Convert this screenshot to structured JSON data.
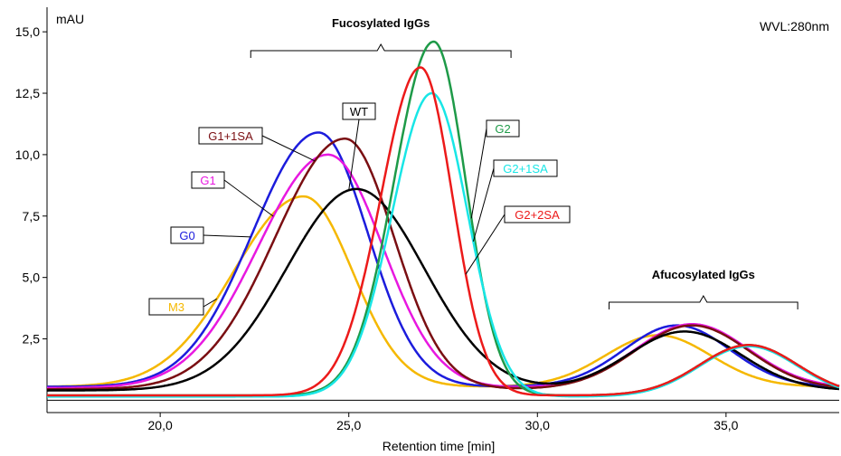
{
  "chart_data": {
    "type": "line",
    "title": "",
    "xlabel": "Retention time  [min]",
    "ylabel": "mAU",
    "corner_label": "WVL:280nm",
    "xlim": [
      17.0,
      38.0
    ],
    "ylim": [
      -0.5,
      16.0
    ],
    "x_ticks": [
      {
        "v": 20,
        "t": "20,0"
      },
      {
        "v": 25,
        "t": "25,0"
      },
      {
        "v": 30,
        "t": "30,0"
      },
      {
        "v": 35,
        "t": "35,0"
      }
    ],
    "y_ticks": [
      {
        "v": 2.5,
        "t": "2,5"
      },
      {
        "v": 5,
        "t": "5,0"
      },
      {
        "v": 7.5,
        "t": "7,5"
      },
      {
        "v": 10,
        "t": "10,0"
      },
      {
        "v": 12.5,
        "t": "12,5"
      },
      {
        "v": 15,
        "t": "15,0"
      }
    ],
    "groups": [
      {
        "label": "Fucosylated IgGs",
        "x_from": 22.4,
        "x_to": 29.3
      },
      {
        "label": "Afucosylated IgGs",
        "x_from": 31.9,
        "x_to": 36.9
      }
    ],
    "series": [
      {
        "name": "M3",
        "color": "#f5b800",
        "baseline": 0.55,
        "peaks": [
          {
            "x": 23.8,
            "h": 7.75,
            "wl": 1.85,
            "wr": 1.3
          },
          {
            "x": 33.2,
            "h": 2.1,
            "wl": 1.4,
            "wr": 1.4
          }
        ],
        "label_pos": "left"
      },
      {
        "name": "G0",
        "color": "#1c1cdc",
        "baseline": 0.55,
        "peaks": [
          {
            "x": 24.2,
            "h": 10.35,
            "wl": 1.75,
            "wr": 1.3
          },
          {
            "x": 33.7,
            "h": 2.5,
            "wl": 1.4,
            "wr": 1.4
          }
        ],
        "label_pos": "left"
      },
      {
        "name": "G1",
        "color": "#e818e0",
        "baseline": 0.5,
        "peaks": [
          {
            "x": 24.45,
            "h": 9.5,
            "wl": 1.85,
            "wr": 1.45
          },
          {
            "x": 34.1,
            "h": 2.6,
            "wl": 1.5,
            "wr": 1.5
          }
        ],
        "label_pos": "left"
      },
      {
        "name": "G1+1SA",
        "color": "#7a0e12",
        "baseline": 0.45,
        "peaks": [
          {
            "x": 24.9,
            "h": 10.2,
            "wl": 1.85,
            "wr": 1.3
          },
          {
            "x": 34.1,
            "h": 2.6,
            "wl": 1.5,
            "wr": 1.5
          }
        ],
        "label_pos": "left"
      },
      {
        "name": "WT",
        "color": "#000000",
        "baseline": 0.4,
        "peaks": [
          {
            "x": 25.2,
            "h": 8.2,
            "wl": 1.85,
            "wr": 1.8
          },
          {
            "x": 33.9,
            "h": 2.4,
            "wl": 1.5,
            "wr": 1.5
          }
        ],
        "label_pos": "top"
      },
      {
        "name": "G2",
        "color": "#1e9a48",
        "baseline": 0.2,
        "peaks": [
          {
            "x": 27.25,
            "h": 14.4,
            "wl": 1.05,
            "wr": 0.85
          },
          {
            "x": 35.6,
            "h": 2.05,
            "wl": 1.3,
            "wr": 1.3
          }
        ],
        "label_pos": "right"
      },
      {
        "name": "G2+1SA",
        "color": "#18e6e6",
        "baseline": 0.15,
        "peaks": [
          {
            "x": 27.2,
            "h": 12.35,
            "wl": 1.05,
            "wr": 0.95
          },
          {
            "x": 35.6,
            "h": 2.05,
            "wl": 1.3,
            "wr": 1.3
          }
        ],
        "label_pos": "right"
      },
      {
        "name": "G2+2SA",
        "color": "#ec1a1a",
        "baseline": 0.2,
        "peaks": [
          {
            "x": 26.9,
            "h": 13.35,
            "wl": 1.05,
            "wr": 0.85
          },
          {
            "x": 35.6,
            "h": 2.05,
            "wl": 1.3,
            "wr": 1.3
          }
        ],
        "label_pos": "right"
      }
    ]
  }
}
